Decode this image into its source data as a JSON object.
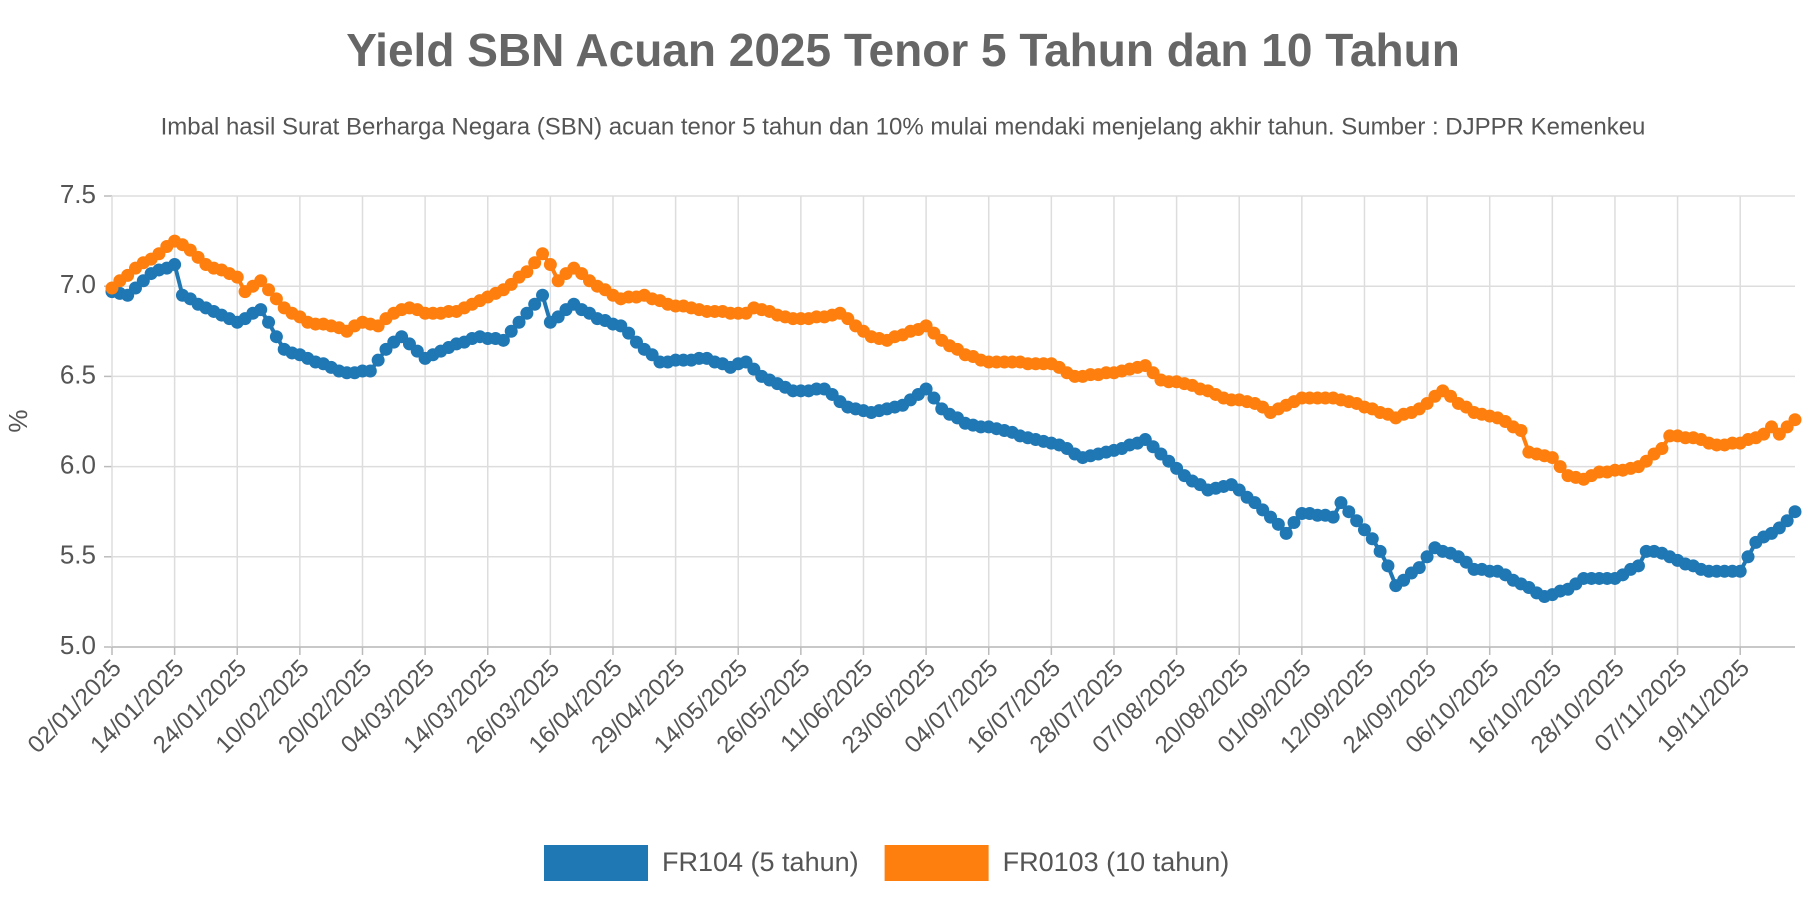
{
  "chart_data": {
    "type": "line",
    "title": "Yield SBN Acuan 2025 Tenor 5 Tahun dan 10 Tahun",
    "subtitle": "Imbal hasil Surat Berharga Negara (SBN) acuan tenor 5 tahun dan 10% mulai mendaki menjelang akhir tahun. Sumber : DJPPR Kemenkeu",
    "y_label": "%",
    "categories": [
      "02/01/2025",
      null,
      null,
      null,
      null,
      null,
      null,
      null,
      "14/01/2025",
      null,
      null,
      null,
      null,
      null,
      null,
      null,
      "24/01/2025",
      null,
      null,
      null,
      null,
      null,
      null,
      null,
      "10/02/2025",
      null,
      null,
      null,
      null,
      null,
      null,
      null,
      "20/02/2025",
      null,
      null,
      null,
      null,
      null,
      null,
      null,
      "04/03/2025",
      null,
      null,
      null,
      null,
      null,
      null,
      null,
      "14/03/2025",
      null,
      null,
      null,
      null,
      null,
      null,
      null,
      "26/03/2025",
      null,
      null,
      null,
      null,
      null,
      null,
      null,
      "16/04/2025",
      null,
      null,
      null,
      null,
      null,
      null,
      null,
      "29/04/2025",
      null,
      null,
      null,
      null,
      null,
      null,
      null,
      "14/05/2025",
      null,
      null,
      null,
      null,
      null,
      null,
      null,
      "26/05/2025",
      null,
      null,
      null,
      null,
      null,
      null,
      null,
      "11/06/2025",
      null,
      null,
      null,
      null,
      null,
      null,
      null,
      "23/06/2025",
      null,
      null,
      null,
      null,
      null,
      null,
      null,
      "04/07/2025",
      null,
      null,
      null,
      null,
      null,
      null,
      null,
      "16/07/2025",
      null,
      null,
      null,
      null,
      null,
      null,
      null,
      "28/07/2025",
      null,
      null,
      null,
      null,
      null,
      null,
      null,
      "07/08/2025",
      null,
      null,
      null,
      null,
      null,
      null,
      null,
      "20/08/2025",
      null,
      null,
      null,
      null,
      null,
      null,
      null,
      "01/09/2025",
      null,
      null,
      null,
      null,
      null,
      null,
      null,
      "12/09/2025",
      null,
      null,
      null,
      null,
      null,
      null,
      null,
      "24/09/2025",
      null,
      null,
      null,
      null,
      null,
      null,
      null,
      "06/10/2025",
      null,
      null,
      null,
      null,
      null,
      null,
      null,
      "16/10/2025",
      null,
      null,
      null,
      null,
      null,
      null,
      null,
      "28/10/2025",
      null,
      null,
      null,
      null,
      null,
      null,
      null,
      "07/11/2025",
      null,
      null,
      null,
      null,
      null,
      null,
      null,
      "19/11/2025",
      null,
      null,
      null,
      null,
      null,
      null,
      null
    ],
    "series": [
      {
        "name": "FR104 (5 tahun)",
        "color": "#1f77b4",
        "values": [
          6.97,
          6.96,
          6.95,
          6.99,
          7.03,
          7.07,
          7.09,
          7.1,
          7.12,
          6.95,
          6.93,
          6.9,
          6.88,
          6.86,
          6.84,
          6.82,
          6.8,
          6.82,
          6.85,
          6.87,
          6.8,
          6.72,
          6.65,
          6.63,
          6.62,
          6.6,
          6.58,
          6.57,
          6.55,
          6.53,
          6.52,
          6.52,
          6.53,
          6.53,
          6.59,
          6.65,
          6.69,
          6.72,
          6.68,
          6.64,
          6.6,
          6.62,
          6.64,
          6.66,
          6.68,
          6.69,
          6.71,
          6.72,
          6.71,
          6.71,
          6.7,
          6.75,
          6.8,
          6.85,
          6.9,
          6.95,
          6.8,
          6.83,
          6.87,
          6.9,
          6.87,
          6.85,
          6.82,
          6.81,
          6.79,
          6.78,
          6.74,
          6.69,
          6.65,
          6.62,
          6.58,
          6.58,
          6.59,
          6.59,
          6.59,
          6.6,
          6.6,
          6.58,
          6.57,
          6.55,
          6.57,
          6.58,
          6.54,
          6.5,
          6.48,
          6.46,
          6.44,
          6.42,
          6.42,
          6.42,
          6.43,
          6.43,
          6.4,
          6.36,
          6.33,
          6.32,
          6.31,
          6.3,
          6.31,
          6.32,
          6.33,
          6.34,
          6.37,
          6.4,
          6.43,
          6.38,
          6.32,
          6.29,
          6.27,
          6.24,
          6.23,
          6.22,
          6.22,
          6.21,
          6.2,
          6.19,
          6.17,
          6.16,
          6.15,
          6.14,
          6.13,
          6.12,
          6.1,
          6.07,
          6.05,
          6.06,
          6.07,
          6.08,
          6.09,
          6.1,
          6.12,
          6.13,
          6.15,
          6.11,
          6.07,
          6.03,
          5.99,
          5.95,
          5.92,
          5.9,
          5.87,
          5.88,
          5.89,
          5.9,
          5.87,
          5.83,
          5.8,
          5.76,
          5.72,
          5.68,
          5.63,
          5.69,
          5.74,
          5.74,
          5.73,
          5.73,
          5.72,
          5.8,
          5.75,
          5.7,
          5.65,
          5.6,
          5.53,
          5.45,
          5.34,
          5.37,
          5.41,
          5.44,
          5.5,
          5.55,
          5.53,
          5.52,
          5.5,
          5.47,
          5.43,
          5.43,
          5.42,
          5.42,
          5.4,
          5.37,
          5.35,
          5.33,
          5.3,
          5.28,
          5.29,
          5.31,
          5.32,
          5.35,
          5.38,
          5.38,
          5.38,
          5.38,
          5.38,
          5.4,
          5.43,
          5.45,
          5.53,
          5.53,
          5.52,
          5.5,
          5.48,
          5.46,
          5.45,
          5.43,
          5.42,
          5.42,
          5.42,
          5.42,
          5.42,
          5.5,
          5.58,
          5.61,
          5.63,
          5.66,
          5.7,
          5.75
        ]
      },
      {
        "name": "FR0103 (10 tahun)",
        "color": "#ff7f0e",
        "values": [
          6.99,
          7.03,
          7.06,
          7.1,
          7.13,
          7.15,
          7.18,
          7.22,
          7.25,
          7.23,
          7.2,
          7.16,
          7.12,
          7.1,
          7.09,
          7.07,
          7.05,
          6.97,
          7.0,
          7.03,
          6.98,
          6.93,
          6.88,
          6.85,
          6.83,
          6.8,
          6.79,
          6.79,
          6.78,
          6.77,
          6.75,
          6.78,
          6.8,
          6.79,
          6.78,
          6.82,
          6.85,
          6.87,
          6.88,
          6.87,
          6.85,
          6.85,
          6.85,
          6.86,
          6.86,
          6.88,
          6.9,
          6.92,
          6.94,
          6.96,
          6.98,
          7.01,
          7.05,
          7.08,
          7.13,
          7.18,
          7.12,
          7.03,
          7.07,
          7.1,
          7.07,
          7.03,
          7.0,
          6.98,
          6.95,
          6.93,
          6.94,
          6.94,
          6.95,
          6.93,
          6.92,
          6.9,
          6.89,
          6.89,
          6.88,
          6.87,
          6.86,
          6.86,
          6.86,
          6.85,
          6.85,
          6.85,
          6.88,
          6.87,
          6.86,
          6.84,
          6.83,
          6.82,
          6.82,
          6.82,
          6.83,
          6.83,
          6.84,
          6.85,
          6.82,
          6.78,
          6.75,
          6.72,
          6.71,
          6.7,
          6.72,
          6.73,
          6.75,
          6.76,
          6.78,
          6.74,
          6.7,
          6.67,
          6.65,
          6.62,
          6.61,
          6.59,
          6.58,
          6.58,
          6.58,
          6.58,
          6.58,
          6.57,
          6.57,
          6.57,
          6.57,
          6.55,
          6.52,
          6.5,
          6.5,
          6.51,
          6.51,
          6.52,
          6.52,
          6.53,
          6.54,
          6.55,
          6.56,
          6.52,
          6.48,
          6.47,
          6.47,
          6.46,
          6.45,
          6.43,
          6.42,
          6.4,
          6.38,
          6.37,
          6.37,
          6.36,
          6.35,
          6.33,
          6.3,
          6.32,
          6.34,
          6.36,
          6.38,
          6.38,
          6.38,
          6.38,
          6.38,
          6.37,
          6.36,
          6.35,
          6.33,
          6.32,
          6.3,
          6.29,
          6.27,
          6.29,
          6.3,
          6.32,
          6.35,
          6.39,
          6.42,
          6.39,
          6.35,
          6.33,
          6.3,
          6.29,
          6.28,
          6.27,
          6.25,
          6.22,
          6.2,
          6.08,
          6.07,
          6.06,
          6.05,
          6.0,
          5.95,
          5.94,
          5.93,
          5.95,
          5.97,
          5.97,
          5.98,
          5.98,
          5.99,
          6.0,
          6.03,
          6.07,
          6.1,
          6.17,
          6.17,
          6.16,
          6.16,
          6.15,
          6.13,
          6.12,
          6.12,
          6.13,
          6.13,
          6.15,
          6.16,
          6.18,
          6.22,
          6.18,
          6.22,
          6.26
        ]
      }
    ],
    "ylim": [
      5,
      7.5
    ],
    "yticks": [
      {
        "value": 5,
        "label": "5.0"
      },
      5.5,
      {
        "value": 6,
        "label": "6.0"
      },
      6.5,
      {
        "value": 7,
        "label": "7.0"
      },
      7.5
    ],
    "grid": true
  }
}
